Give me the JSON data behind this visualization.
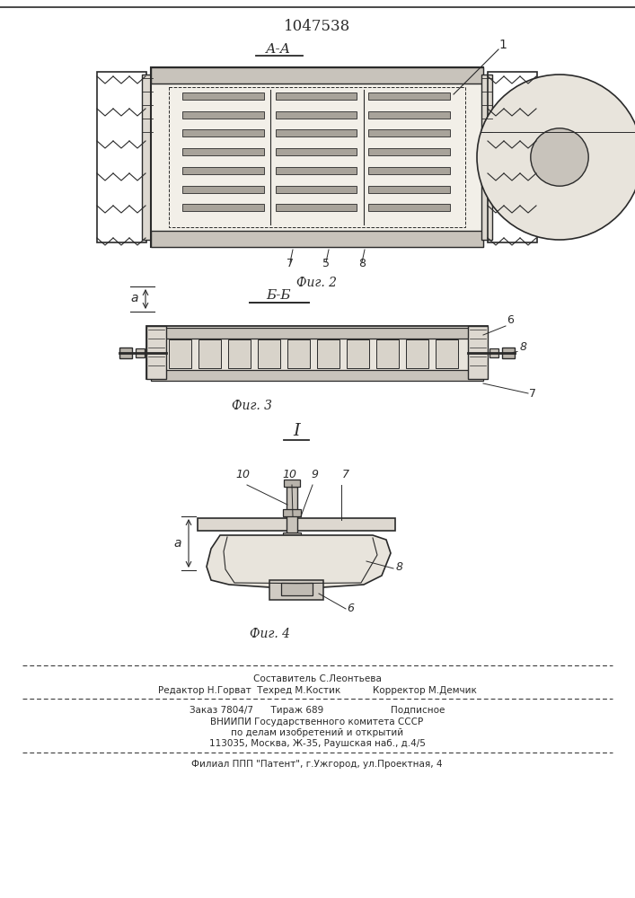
{
  "patent_number": "1047538",
  "bg_color": "#ffffff",
  "line_color": "#2a2a2a",
  "section_label_AA": "А-А",
  "section_label_BB": "Б-Б",
  "fig2_label": "Фиг. 2",
  "fig3_label": "Фиг. 3",
  "fig4_label": "Фиг. 4",
  "detail_label": "I",
  "footer_line1": "Составитель С.Леонтьева",
  "footer_line2": "Редактор Н.Горват  Техред М.Костик           Корректор М.Демчик",
  "footer_line3": "Заказ 7804/7      Тираж 689                       Подписное",
  "footer_line4": "ВНИИПИ Государственного комитета СССР",
  "footer_line5": "по делам изобретений и открытий",
  "footer_line6": "113035, Москва, Ж-35, Раушская наб., д.4/5",
  "footer_line7": "Филиал ППП \"Патент\", г.Ужгород, ул.Проектная, 4"
}
